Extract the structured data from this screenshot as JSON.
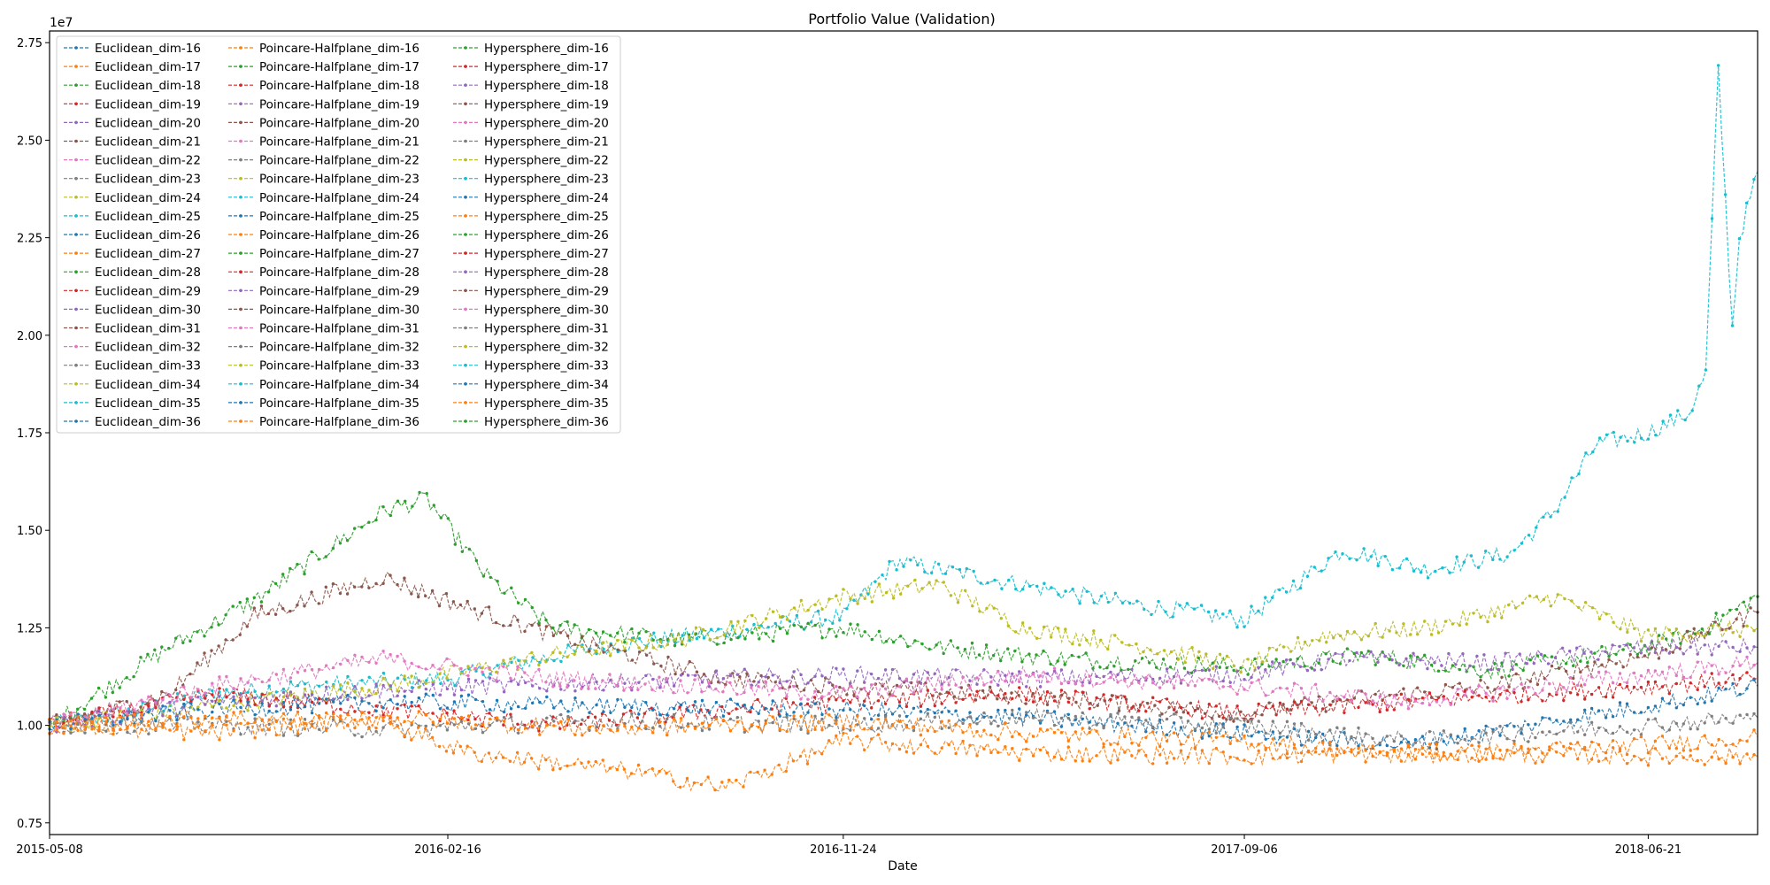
{
  "chart_data": {
    "type": "line",
    "title": "Portfolio Value (Validation)",
    "xlabel": "Date",
    "ylabel": "",
    "y_offset_label": "1e7",
    "x_domain": [
      "2015-05-08",
      "2018-09-07"
    ],
    "ylim": [
      0.72,
      2.78
    ],
    "x_ticks": [
      "2015-05-08",
      "2016-02-16",
      "2016-11-24",
      "2017-09-06",
      "2018-06-21"
    ],
    "y_ticks": [
      0.75,
      1.0,
      1.25,
      1.5,
      1.75,
      2.0,
      2.25,
      2.5,
      2.75
    ],
    "y_tick_labels": [
      "0.75",
      "1.00",
      "1.25",
      "1.50",
      "1.75",
      "2.00",
      "2.25",
      "2.50",
      "2.75"
    ],
    "grid": false,
    "legend": {
      "position": "top-left",
      "columns": 3
    },
    "palette": [
      "#1f77b4",
      "#ff7f0e",
      "#2ca02c",
      "#d62728",
      "#9467bd",
      "#8c564b",
      "#e377c2",
      "#7f7f7f",
      "#bcbd22",
      "#17becf"
    ],
    "series_names": [
      "Euclidean_dim-16",
      "Euclidean_dim-17",
      "Euclidean_dim-18",
      "Euclidean_dim-19",
      "Euclidean_dim-20",
      "Euclidean_dim-21",
      "Euclidean_dim-22",
      "Euclidean_dim-23",
      "Euclidean_dim-24",
      "Euclidean_dim-25",
      "Euclidean_dim-26",
      "Euclidean_dim-27",
      "Euclidean_dim-28",
      "Euclidean_dim-29",
      "Euclidean_dim-30",
      "Euclidean_dim-31",
      "Euclidean_dim-32",
      "Euclidean_dim-33",
      "Euclidean_dim-34",
      "Euclidean_dim-35",
      "Euclidean_dim-36",
      "Poincare-Halfplane_dim-16",
      "Poincare-Halfplane_dim-17",
      "Poincare-Halfplane_dim-18",
      "Poincare-Halfplane_dim-19",
      "Poincare-Halfplane_dim-20",
      "Poincare-Halfplane_dim-21",
      "Poincare-Halfplane_dim-22",
      "Poincare-Halfplane_dim-23",
      "Poincare-Halfplane_dim-24",
      "Poincare-Halfplane_dim-25",
      "Poincare-Halfplane_dim-26",
      "Poincare-Halfplane_dim-27",
      "Poincare-Halfplane_dim-28",
      "Poincare-Halfplane_dim-29",
      "Poincare-Halfplane_dim-30",
      "Poincare-Halfplane_dim-31",
      "Poincare-Halfplane_dim-32",
      "Poincare-Halfplane_dim-33",
      "Poincare-Halfplane_dim-34",
      "Poincare-Halfplane_dim-35",
      "Poincare-Halfplane_dim-36",
      "Hypersphere_dim-16",
      "Hypersphere_dim-17",
      "Hypersphere_dim-18",
      "Hypersphere_dim-19",
      "Hypersphere_dim-20",
      "Hypersphere_dim-21",
      "Hypersphere_dim-22",
      "Hypersphere_dim-23",
      "Hypersphere_dim-24",
      "Hypersphere_dim-25",
      "Hypersphere_dim-26",
      "Hypersphere_dim-27",
      "Hypersphere_dim-28",
      "Hypersphere_dim-29",
      "Hypersphere_dim-30",
      "Hypersphere_dim-31",
      "Hypersphere_dim-32",
      "Hypersphere_dim-33",
      "Hypersphere_dim-34",
      "Hypersphere_dim-35",
      "Hypersphere_dim-36"
    ],
    "series": [
      {
        "color": "#17becf",
        "x": [
          "2015-05-08",
          "2015-07-01",
          "2015-09-01",
          "2015-11-01",
          "2016-02-16",
          "2016-06-01",
          "2016-09-01",
          "2016-11-24",
          "2017-01-01",
          "2017-04-01",
          "2017-06-01",
          "2017-09-06",
          "2017-11-15",
          "2018-01-15",
          "2018-03-15",
          "2018-04-15",
          "2018-05-15",
          "2018-06-21",
          "2018-07-20",
          "2018-08-01",
          "2018-08-10",
          "2018-08-20",
          "2018-08-25",
          "2018-09-07"
        ],
        "y": [
          1.0,
          1.03,
          1.08,
          1.1,
          1.12,
          1.2,
          1.24,
          1.28,
          1.42,
          1.36,
          1.32,
          1.27,
          1.45,
          1.4,
          1.44,
          1.55,
          1.72,
          1.75,
          1.8,
          1.9,
          2.68,
          2.02,
          2.25,
          2.42
        ]
      },
      {
        "color": "#2ca02c",
        "x": [
          "2015-05-08",
          "2015-08-01",
          "2015-10-01",
          "2016-01-01",
          "2016-02-01",
          "2016-03-15",
          "2016-05-01",
          "2016-08-01",
          "2016-11-24",
          "2017-02-01",
          "2017-05-01",
          "2017-09-06",
          "2017-12-01",
          "2018-03-01",
          "2018-06-21",
          "2018-08-01",
          "2018-09-07"
        ],
        "y": [
          1.0,
          1.2,
          1.32,
          1.55,
          1.58,
          1.38,
          1.25,
          1.22,
          1.25,
          1.2,
          1.17,
          1.15,
          1.18,
          1.14,
          1.2,
          1.25,
          1.33
        ]
      },
      {
        "color": "#bcbd22",
        "x": [
          "2015-05-08",
          "2015-09-01",
          "2016-01-01",
          "2016-05-01",
          "2016-08-01",
          "2016-11-24",
          "2017-02-01",
          "2017-04-01",
          "2017-07-01",
          "2017-09-06",
          "2017-11-01",
          "2018-01-15",
          "2018-04-15",
          "2018-06-21",
          "2018-09-07"
        ],
        "y": [
          1.0,
          1.05,
          1.1,
          1.18,
          1.22,
          1.33,
          1.36,
          1.25,
          1.2,
          1.15,
          1.23,
          1.25,
          1.33,
          1.23,
          1.25
        ]
      },
      {
        "color": "#8c564b",
        "x": [
          "2015-05-08",
          "2015-08-01",
          "2015-10-01",
          "2016-01-01",
          "2016-03-01",
          "2016-06-01",
          "2016-09-01",
          "2016-11-24",
          "2017-03-01",
          "2017-06-01",
          "2017-09-06",
          "2017-12-01",
          "2018-03-01",
          "2018-06-21",
          "2018-09-07"
        ],
        "y": [
          1.0,
          1.08,
          1.28,
          1.38,
          1.3,
          1.2,
          1.12,
          1.1,
          1.08,
          1.06,
          1.03,
          1.07,
          1.1,
          1.18,
          1.29
        ]
      },
      {
        "color": "#9467bd",
        "x": [
          "2015-05-08",
          "2015-09-01",
          "2016-01-01",
          "2016-06-01",
          "2016-11-24",
          "2017-04-01",
          "2017-09-06",
          "2017-11-15",
          "2018-03-01",
          "2018-06-21",
          "2018-09-07"
        ],
        "y": [
          1.0,
          1.06,
          1.09,
          1.11,
          1.13,
          1.12,
          1.13,
          1.17,
          1.16,
          1.2,
          1.2
        ]
      },
      {
        "color": "#d62728",
        "x": [
          "2015-05-08",
          "2015-09-01",
          "2016-01-01",
          "2016-05-01",
          "2016-09-01",
          "2016-11-24",
          "2017-04-01",
          "2017-09-06",
          "2018-01-01",
          "2018-06-21",
          "2018-09-07"
        ],
        "y": [
          1.0,
          1.08,
          1.04,
          1.0,
          1.04,
          1.06,
          1.08,
          1.03,
          1.06,
          1.1,
          1.12
        ]
      },
      {
        "color": "#e377c2",
        "x": [
          "2015-05-08",
          "2015-09-01",
          "2016-01-01",
          "2016-05-01",
          "2016-11-24",
          "2017-04-01",
          "2017-09-06",
          "2018-01-01",
          "2018-06-21",
          "2018-09-07"
        ],
        "y": [
          1.0,
          1.1,
          1.17,
          1.12,
          1.08,
          1.13,
          1.1,
          1.06,
          1.13,
          1.16
        ]
      },
      {
        "color": "#1f77b4",
        "x": [
          "2015-05-08",
          "2015-09-01",
          "2016-01-01",
          "2016-06-01",
          "2016-11-24",
          "2017-04-01",
          "2017-09-06",
          "2018-01-01",
          "2018-06-21",
          "2018-09-07"
        ],
        "y": [
          1.0,
          1.04,
          1.06,
          1.05,
          1.04,
          1.02,
          0.98,
          0.95,
          1.05,
          1.1
        ]
      },
      {
        "color": "#7f7f7f",
        "x": [
          "2015-05-08",
          "2015-09-01",
          "2016-01-01",
          "2016-06-01",
          "2016-11-24",
          "2017-04-01",
          "2017-09-06",
          "2018-01-01",
          "2018-06-21",
          "2018-09-07"
        ],
        "y": [
          1.0,
          1.0,
          0.99,
          1.01,
          1.0,
          1.02,
          1.0,
          0.96,
          1.0,
          1.02
        ]
      },
      {
        "color": "#ff7f0e",
        "x": [
          "2015-05-08",
          "2015-09-01",
          "2016-01-01",
          "2016-03-01",
          "2016-07-01",
          "2016-09-01",
          "2016-11-24",
          "2017-04-01",
          "2017-09-06",
          "2018-01-01",
          "2018-06-21",
          "2018-09-07"
        ],
        "y": [
          1.0,
          1.02,
          1.01,
          0.93,
          0.88,
          0.84,
          0.96,
          0.93,
          0.92,
          0.93,
          0.92,
          0.92
        ]
      },
      {
        "color": "#ff7f0e",
        "x": [
          "2015-05-08",
          "2015-09-01",
          "2016-01-01",
          "2016-06-01",
          "2016-11-24",
          "2017-04-01",
          "2017-09-06",
          "2018-01-01",
          "2018-06-21",
          "2018-09-07"
        ],
        "y": [
          1.0,
          0.98,
          1.02,
          0.99,
          1.01,
          0.98,
          0.96,
          0.92,
          0.95,
          0.97
        ]
      }
    ]
  }
}
